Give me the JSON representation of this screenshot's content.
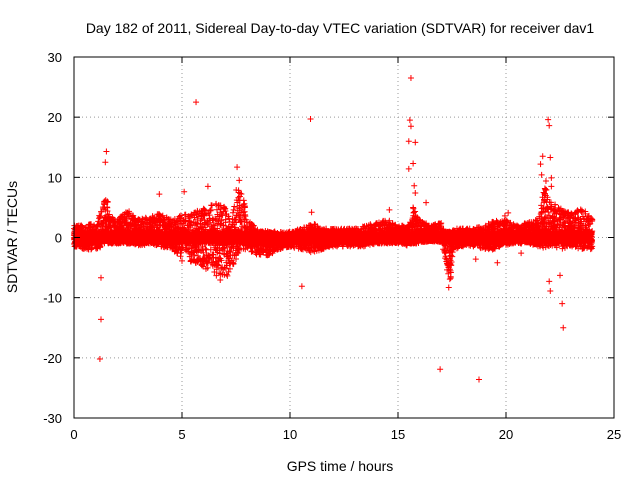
{
  "chart_data": {
    "type": "scatter",
    "title": "Day 182 of 2011, Sidereal Day-to-day VTEC variation (SDTVAR) for receiver dav1",
    "xlabel": "GPS time / hours",
    "ylabel": "SDTVAR / TECUs",
    "xlim": [
      0,
      25
    ],
    "ylim": [
      -30,
      30
    ],
    "xticks": [
      0,
      5,
      10,
      15,
      20,
      25
    ],
    "yticks": [
      -30,
      -20,
      -10,
      0,
      10,
      20,
      30
    ],
    "grid": true,
    "marker": "+",
    "color": "#ff0000",
    "dense_band": {
      "x_start": 0.0,
      "x_end": 24.0,
      "step_hours": 0.01,
      "envelope": [
        [
          0.0,
          -1.5,
          2.0
        ],
        [
          0.5,
          -2.0,
          2.0
        ],
        [
          1.0,
          -2.0,
          2.5
        ],
        [
          1.3,
          -1.5,
          5.0
        ],
        [
          1.5,
          -1.0,
          7.0
        ],
        [
          1.7,
          -0.5,
          3.5
        ],
        [
          2.0,
          -1.0,
          3.0
        ],
        [
          2.5,
          -1.0,
          4.5
        ],
        [
          3.0,
          -1.5,
          3.0
        ],
        [
          3.5,
          -1.0,
          3.5
        ],
        [
          4.0,
          -1.5,
          4.0
        ],
        [
          4.5,
          -2.0,
          3.0
        ],
        [
          5.0,
          -4.0,
          4.0
        ],
        [
          5.5,
          -4.0,
          4.0
        ],
        [
          6.0,
          -5.0,
          5.0
        ],
        [
          6.5,
          -6.0,
          6.0
        ],
        [
          7.0,
          -8.0,
          5.0
        ],
        [
          7.3,
          -5.0,
          3.0
        ],
        [
          7.6,
          -3.0,
          10.0
        ],
        [
          7.8,
          -2.0,
          8.0
        ],
        [
          8.0,
          -2.0,
          3.0
        ],
        [
          8.5,
          -3.0,
          1.5
        ],
        [
          9.0,
          -3.0,
          1.0
        ],
        [
          9.5,
          -2.0,
          1.0
        ],
        [
          10.0,
          -1.5,
          1.0
        ],
        [
          10.5,
          -2.0,
          1.5
        ],
        [
          11.0,
          -2.5,
          2.5
        ],
        [
          11.5,
          -2.0,
          1.5
        ],
        [
          12.0,
          -1.5,
          1.5
        ],
        [
          13.0,
          -1.5,
          1.5
        ],
        [
          13.5,
          -1.5,
          2.0
        ],
        [
          14.0,
          -1.0,
          2.5
        ],
        [
          14.5,
          -1.0,
          3.0
        ],
        [
          15.0,
          -1.0,
          2.0
        ],
        [
          15.5,
          -1.5,
          2.0
        ],
        [
          15.7,
          -1.0,
          5.0
        ],
        [
          16.0,
          -0.5,
          3.0
        ],
        [
          16.5,
          -0.5,
          2.0
        ],
        [
          17.0,
          -0.5,
          2.5
        ],
        [
          17.2,
          -4.0,
          1.0
        ],
        [
          17.4,
          -8.0,
          1.0
        ],
        [
          17.6,
          -2.0,
          1.5
        ],
        [
          18.0,
          -1.5,
          1.5
        ],
        [
          18.5,
          -1.5,
          1.5
        ],
        [
          19.0,
          -2.0,
          2.0
        ],
        [
          19.5,
          -2.0,
          3.0
        ],
        [
          20.0,
          -1.5,
          3.0
        ],
        [
          20.5,
          -1.0,
          2.0
        ],
        [
          21.0,
          -1.0,
          2.5
        ],
        [
          21.5,
          -1.5,
          3.0
        ],
        [
          21.8,
          -2.0,
          9.0
        ],
        [
          22.0,
          -1.5,
          6.0
        ],
        [
          22.5,
          -2.0,
          5.0
        ],
        [
          23.0,
          -1.5,
          4.0
        ],
        [
          23.5,
          -2.0,
          5.0
        ],
        [
          24.0,
          -2.0,
          3.0
        ]
      ]
    },
    "outliers": [
      [
        1.25,
        -6.7
      ],
      [
        1.25,
        -13.6
      ],
      [
        1.2,
        -20.2
      ],
      [
        1.5,
        14.3
      ],
      [
        1.45,
        12.5
      ],
      [
        3.95,
        7.2
      ],
      [
        5.1,
        7.6
      ],
      [
        5.65,
        22.5
      ],
      [
        6.2,
        8.5
      ],
      [
        7.55,
        11.7
      ],
      [
        7.65,
        9.5
      ],
      [
        10.55,
        -8.1
      ],
      [
        10.95,
        19.7
      ],
      [
        11.0,
        4.2
      ],
      [
        14.6,
        4.6
      ],
      [
        15.6,
        26.5
      ],
      [
        15.55,
        19.5
      ],
      [
        15.6,
        18.5
      ],
      [
        15.5,
        16.0
      ],
      [
        15.8,
        15.8
      ],
      [
        15.7,
        12.3
      ],
      [
        15.5,
        11.4
      ],
      [
        15.75,
        8.6
      ],
      [
        15.8,
        7.4
      ],
      [
        16.3,
        5.8
      ],
      [
        16.95,
        -21.9
      ],
      [
        17.35,
        -8.3
      ],
      [
        18.75,
        -23.6
      ],
      [
        19.6,
        -4.2
      ],
      [
        19.95,
        3.6
      ],
      [
        20.1,
        4.1
      ],
      [
        21.6,
        12.2
      ],
      [
        21.65,
        10.4
      ],
      [
        21.7,
        13.5
      ],
      [
        21.85,
        9.4
      ],
      [
        21.95,
        19.6
      ],
      [
        22.0,
        18.6
      ],
      [
        22.05,
        13.3
      ],
      [
        22.1,
        9.9
      ],
      [
        22.1,
        8.5
      ],
      [
        22.0,
        -7.3
      ],
      [
        22.05,
        -8.9
      ],
      [
        22.6,
        -11.0
      ],
      [
        22.65,
        -15.0
      ],
      [
        22.5,
        -6.3
      ],
      [
        20.7,
        -2.6
      ],
      [
        18.6,
        -3.6
      ]
    ]
  }
}
